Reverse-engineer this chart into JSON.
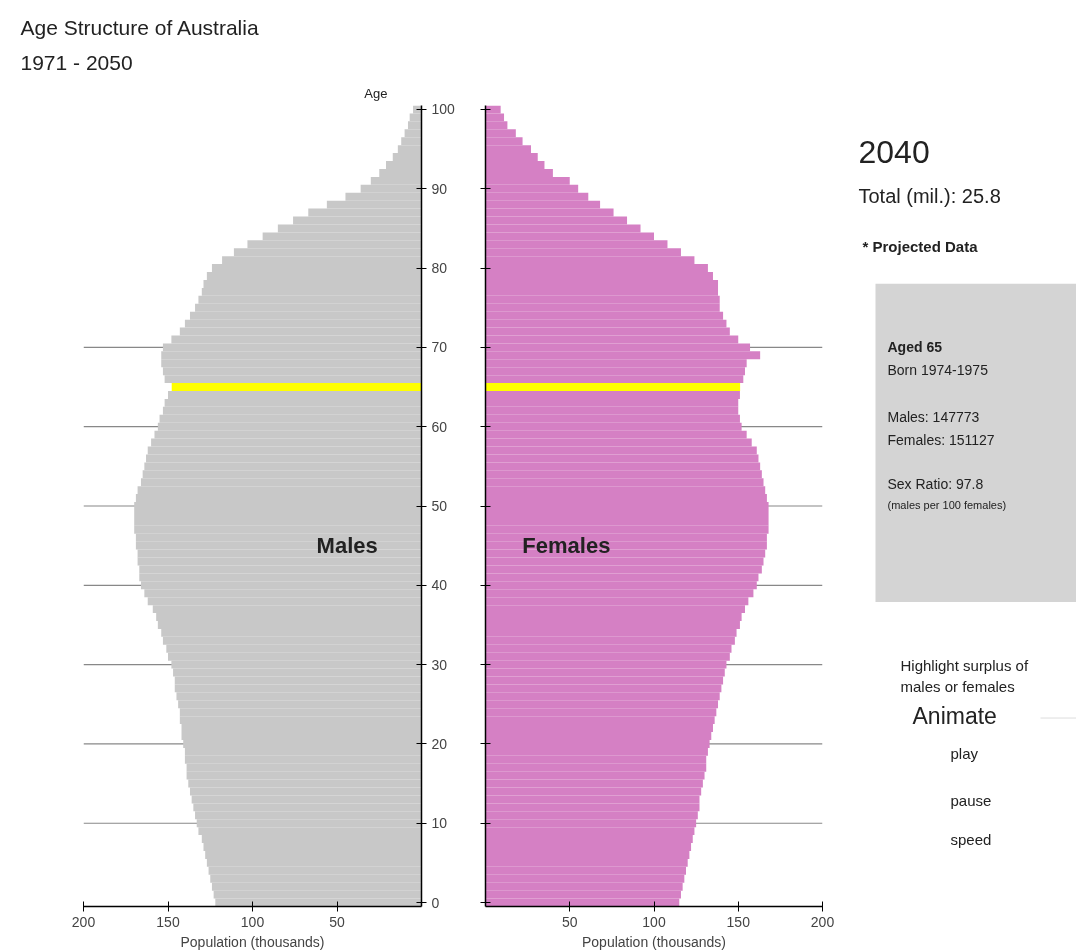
{
  "chart_data": [
    {
      "type": "bar",
      "orientation": "horizontal",
      "title": "Age Structure of Australia",
      "subtitle": "1971 - 2050",
      "xlabel": "Population (thousands)",
      "ylabel": "Age",
      "categories": [
        "100",
        null,
        null,
        null,
        null,
        null,
        null,
        null,
        null,
        null,
        "90",
        null,
        null,
        null,
        null,
        null,
        null,
        null,
        null,
        null,
        "80",
        null,
        null,
        null,
        null,
        null,
        null,
        null,
        null,
        null,
        "70",
        null,
        null,
        null,
        null,
        null,
        null,
        null,
        null,
        null,
        "60",
        null,
        null,
        null,
        null,
        null,
        null,
        null,
        null,
        null,
        "50",
        null,
        null,
        null,
        null,
        null,
        null,
        null,
        null,
        null,
        "40",
        null,
        null,
        null,
        null,
        null,
        null,
        null,
        null,
        null,
        "30",
        null,
        null,
        null,
        null,
        null,
        null,
        null,
        null,
        null,
        "20",
        null,
        null,
        null,
        null,
        null,
        null,
        null,
        null,
        null,
        "10",
        null,
        null,
        null,
        null,
        null,
        null,
        null,
        null,
        null,
        "0"
      ],
      "series": [
        {
          "name": "Males",
          "values": [
            5,
            7,
            8,
            10,
            12,
            14,
            17,
            21,
            25,
            30,
            36,
            45,
            56,
            67,
            76,
            85,
            94,
            103,
            111,
            118,
            124,
            127,
            129,
            130,
            132,
            134,
            137,
            140,
            143,
            148,
            153,
            154,
            154,
            153,
            152,
            147.8,
            150,
            152,
            153,
            155,
            156,
            158,
            160,
            162,
            163,
            164,
            165,
            166,
            168,
            169,
            170,
            170,
            170,
            170,
            169,
            169,
            168,
            168,
            167,
            167,
            166,
            164,
            162,
            159,
            157,
            156,
            154,
            153,
            151,
            150,
            148,
            147,
            146,
            146,
            145,
            144,
            143,
            143,
            142,
            142,
            141,
            140,
            140,
            139,
            139,
            138,
            137,
            136,
            135,
            134,
            133,
            132,
            130,
            129,
            128,
            127,
            126,
            125,
            124,
            123,
            122
          ],
          "colors": [
            "#c8c8c8",
            "#c8c8c8",
            "#c8c8c8",
            "#c8c8c8",
            "#c8c8c8",
            "#c8c8c8",
            "#c8c8c8",
            "#c8c8c8",
            "#c8c8c8",
            "#c8c8c8",
            "#c8c8c8",
            "#c8c8c8",
            "#c8c8c8",
            "#c8c8c8",
            "#c8c8c8",
            "#c8c8c8",
            "#c8c8c8",
            "#c8c8c8",
            "#c8c8c8",
            "#c8c8c8",
            "#c8c8c8",
            "#c8c8c8",
            "#c8c8c8",
            "#c8c8c8",
            "#c8c8c8",
            "#c8c8c8",
            "#c8c8c8",
            "#c8c8c8",
            "#c8c8c8",
            "#c8c8c8",
            "#c8c8c8",
            "#c8c8c8",
            "#c8c8c8",
            "#c8c8c8",
            "#c8c8c8",
            "#ffff00",
            "#c8c8c8",
            "#c8c8c8",
            "#c8c8c8",
            "#c8c8c8",
            "#c8c8c8",
            "#c8c8c8",
            "#c8c8c8",
            "#c8c8c8",
            "#c8c8c8",
            "#c8c8c8",
            "#c8c8c8",
            "#c8c8c8",
            "#c8c8c8",
            "#c8c8c8",
            "#c8c8c8",
            "#c8c8c8",
            "#c8c8c8",
            "#c8c8c8",
            "#c8c8c8",
            "#c8c8c8",
            "#c8c8c8",
            "#c8c8c8",
            "#c8c8c8",
            "#c8c8c8",
            "#c8c8c8",
            "#c8c8c8",
            "#c8c8c8",
            "#c8c8c8",
            "#c8c8c8",
            "#c8c8c8",
            "#c8c8c8",
            "#c8c8c8",
            "#c8c8c8",
            "#c8c8c8",
            "#c8c8c8",
            "#c8c8c8",
            "#c8c8c8",
            "#c8c8c8",
            "#c8c8c8",
            "#c8c8c8",
            "#c8c8c8",
            "#c8c8c8",
            "#c8c8c8",
            "#c8c8c8",
            "#c8c8c8",
            "#c8c8c8",
            "#c8c8c8",
            "#c8c8c8",
            "#c8c8c8",
            "#c8c8c8",
            "#c8c8c8",
            "#c8c8c8",
            "#c8c8c8",
            "#c8c8c8",
            "#c8c8c8",
            "#c8c8c8",
            "#c8c8c8",
            "#c8c8c8",
            "#c8c8c8",
            "#c8c8c8",
            "#c8c8c8",
            "#c8c8c8",
            "#c8c8c8",
            "#c8c8c8",
            "#c8c8c8"
          ]
        }
      ],
      "xlim": [
        200,
        0
      ],
      "xticks": [
        200,
        150,
        100,
        50
      ],
      "ref_lines": [
        {
          "axis": "y",
          "value": "70",
          "color": "#888888"
        },
        {
          "axis": "y",
          "value": "60",
          "color": "#888888"
        },
        {
          "axis": "y",
          "value": "50",
          "color": "#888888"
        },
        {
          "axis": "y",
          "value": "40",
          "color": "#888888"
        },
        {
          "axis": "y",
          "value": "30",
          "color": "#888888"
        },
        {
          "axis": "y",
          "value": "20",
          "color": "#888888"
        },
        {
          "axis": "y",
          "value": "10",
          "color": "#888888"
        }
      ]
    },
    {
      "type": "bar",
      "orientation": "horizontal",
      "xlabel": "Population (thousands)",
      "tick_labels": "x",
      "categories": [
        "100",
        null,
        null,
        null,
        null,
        null,
        null,
        null,
        null,
        null,
        "90",
        null,
        null,
        null,
        null,
        null,
        null,
        null,
        null,
        null,
        "80",
        null,
        null,
        null,
        null,
        null,
        null,
        null,
        null,
        null,
        "70",
        null,
        null,
        null,
        null,
        null,
        null,
        null,
        null,
        null,
        "60",
        null,
        null,
        null,
        null,
        null,
        null,
        null,
        null,
        null,
        "50",
        null,
        null,
        null,
        null,
        null,
        null,
        null,
        null,
        null,
        "40",
        null,
        null,
        null,
        null,
        null,
        null,
        null,
        null,
        null,
        "30",
        null,
        null,
        null,
        null,
        null,
        null,
        null,
        null,
        null,
        "20",
        null,
        null,
        null,
        null,
        null,
        null,
        null,
        null,
        null,
        "10",
        null,
        null,
        null,
        null,
        null,
        null,
        null,
        null,
        null,
        "0"
      ],
      "series": [
        {
          "name": "Females",
          "values": [
            9,
            11,
            13,
            18,
            22,
            27,
            31,
            35,
            40,
            50,
            55,
            61,
            68,
            76,
            84,
            92,
            100,
            108,
            116,
            124,
            132,
            135,
            138,
            138,
            139,
            139,
            141,
            143,
            145,
            150,
            157,
            163,
            155,
            154,
            153,
            151.1,
            151,
            150,
            150,
            151,
            152,
            155,
            158,
            161,
            162,
            163,
            164,
            165,
            166,
            167,
            168,
            168,
            168,
            168,
            167,
            167,
            166,
            165,
            164,
            162,
            161,
            159,
            156,
            154,
            152,
            151,
            149,
            148,
            146,
            145,
            143,
            142,
            141,
            140,
            139,
            138,
            137,
            136,
            135,
            134,
            133,
            132,
            131,
            131,
            130,
            129,
            128,
            127,
            127,
            126,
            125,
            124,
            123,
            122,
            121,
            120,
            119,
            118,
            117,
            116,
            115
          ],
          "colors": [
            "#d580c4",
            "#d580c4",
            "#d580c4",
            "#d580c4",
            "#d580c4",
            "#d580c4",
            "#d580c4",
            "#d580c4",
            "#d580c4",
            "#d580c4",
            "#d580c4",
            "#d580c4",
            "#d580c4",
            "#d580c4",
            "#d580c4",
            "#d580c4",
            "#d580c4",
            "#d580c4",
            "#d580c4",
            "#d580c4",
            "#d580c4",
            "#d580c4",
            "#d580c4",
            "#d580c4",
            "#d580c4",
            "#d580c4",
            "#d580c4",
            "#d580c4",
            "#d580c4",
            "#d580c4",
            "#d580c4",
            "#d580c4",
            "#d580c4",
            "#d580c4",
            "#d580c4",
            "#ffff00",
            "#d580c4",
            "#d580c4",
            "#d580c4",
            "#d580c4",
            "#d580c4",
            "#d580c4",
            "#d580c4",
            "#d580c4",
            "#d580c4",
            "#d580c4",
            "#d580c4",
            "#d580c4",
            "#d580c4",
            "#d580c4",
            "#d580c4",
            "#d580c4",
            "#d580c4",
            "#d580c4",
            "#d580c4",
            "#d580c4",
            "#d580c4",
            "#d580c4",
            "#d580c4",
            "#d580c4",
            "#d580c4",
            "#d580c4",
            "#d580c4",
            "#d580c4",
            "#d580c4",
            "#d580c4",
            "#d580c4",
            "#d580c4",
            "#d580c4",
            "#d580c4",
            "#d580c4",
            "#d580c4",
            "#d580c4",
            "#d580c4",
            "#d580c4",
            "#d580c4",
            "#d580c4",
            "#d580c4",
            "#d580c4",
            "#d580c4",
            "#d580c4",
            "#d580c4",
            "#d580c4",
            "#d580c4",
            "#d580c4",
            "#d580c4",
            "#d580c4",
            "#d580c4",
            "#d580c4",
            "#d580c4",
            "#d580c4",
            "#d580c4",
            "#d580c4",
            "#d580c4",
            "#d580c4",
            "#d580c4",
            "#d580c4",
            "#d580c4",
            "#d580c4",
            "#d580c4",
            "#d580c4"
          ]
        }
      ],
      "xlim": [
        0,
        200
      ],
      "xticks": [
        50,
        100,
        150,
        200
      ],
      "ref_lines": [
        {
          "axis": "y",
          "value": "70",
          "color": "#888888"
        },
        {
          "axis": "y",
          "value": "60",
          "color": "#888888"
        },
        {
          "axis": "y",
          "value": "50",
          "color": "#888888"
        },
        {
          "axis": "y",
          "value": "40",
          "color": "#888888"
        },
        {
          "axis": "y",
          "value": "30",
          "color": "#888888"
        },
        {
          "axis": "y",
          "value": "20",
          "color": "#888888"
        },
        {
          "axis": "y",
          "value": "10",
          "color": "#888888"
        }
      ]
    },
    {
      "type": "other",
      "annotations": [
        "2040",
        "Total (mil.): 25.8",
        "* Projected Data",
        "Aged 65",
        "Born 1974-1975",
        "Males:     147773",
        "Females:  151127",
        "Sex Ratio: 97.8",
        "(males per 100 females)",
        "Highlight surplus of",
        "males or females",
        "Animate",
        "play",
        "pause",
        "speed"
      ]
    }
  ]
}
